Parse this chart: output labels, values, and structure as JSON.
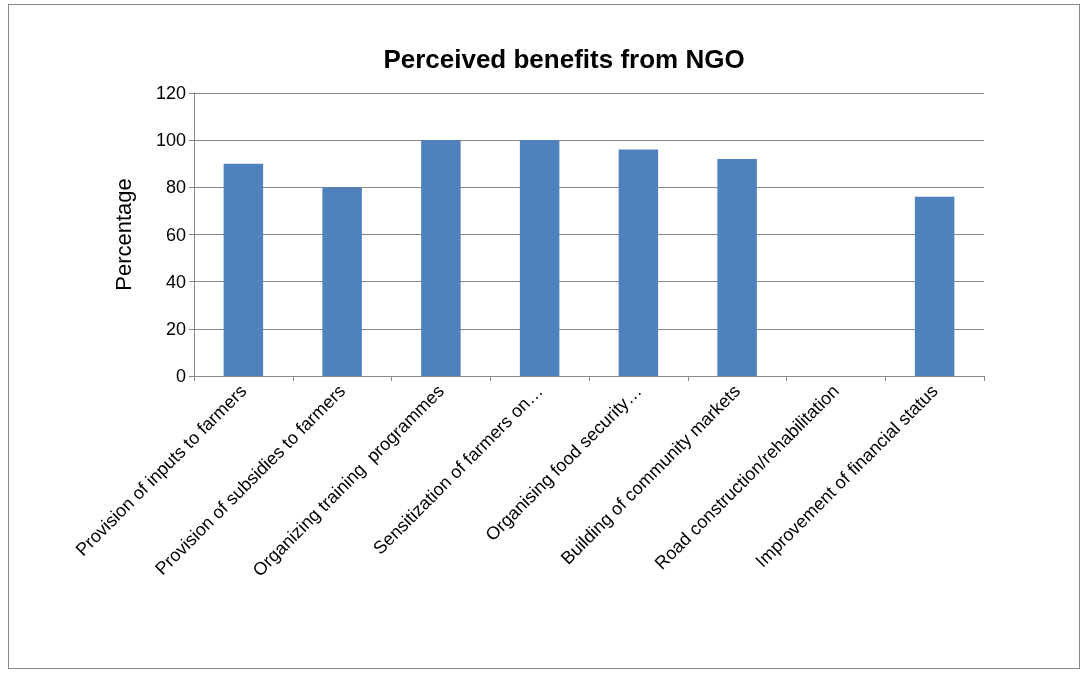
{
  "chart_data": {
    "type": "bar",
    "title": "Perceived benefits from NGO",
    "ylabel": "Percentage",
    "categories": [
      "Provision of inputs to farmers",
      "Provision of subsidies to farmers",
      "Organizing training  programmes",
      "Sensitization of farmers on…",
      "Organising food security…",
      "Building of community markets",
      "Road construction/rehabilitation",
      "Improvement of financial status"
    ],
    "values": [
      90,
      80,
      100,
      100,
      96,
      92,
      0,
      76
    ],
    "color": "#4f81bd",
    "ylim": [
      0,
      120
    ],
    "yticks": [
      0,
      20,
      40,
      60,
      80,
      100,
      120
    ],
    "grid": "y"
  }
}
